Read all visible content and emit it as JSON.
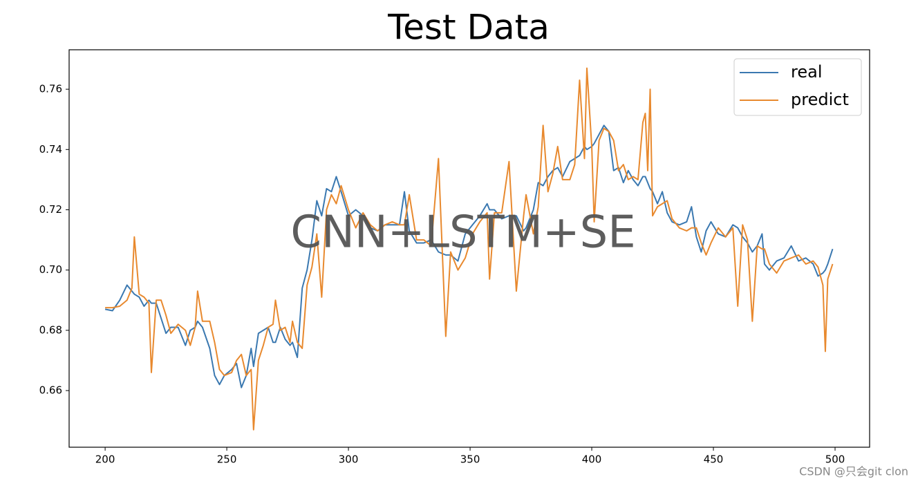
{
  "chart_data": {
    "type": "line",
    "title": "Test Data",
    "watermark": "CNN+LSTM+SE",
    "credit": "CSDN @只会git clon",
    "x": [
      200,
      203,
      206,
      209,
      211,
      212,
      214,
      216,
      218,
      219,
      221,
      223,
      225,
      227,
      230,
      233,
      235,
      237,
      238,
      240,
      243,
      245,
      247,
      249,
      252,
      254,
      256,
      258,
      260,
      261,
      263,
      265,
      267,
      269,
      270,
      272,
      274,
      276,
      277,
      279,
      281,
      283,
      285,
      287,
      289,
      291,
      293,
      295,
      297,
      300,
      303,
      306,
      309,
      312,
      315,
      318,
      321,
      323,
      325,
      328,
      331,
      334,
      337,
      340,
      342,
      345,
      348,
      351,
      354,
      357,
      358,
      360,
      363,
      366,
      369,
      372,
      373,
      376,
      378,
      380,
      382,
      384,
      386,
      388,
      391,
      393,
      395,
      397,
      398,
      400,
      401,
      403,
      405,
      407,
      409,
      411,
      413,
      415,
      417,
      419,
      421,
      422,
      423,
      424,
      425,
      427,
      429,
      431,
      433,
      436,
      439,
      441,
      443,
      445,
      447,
      449,
      452,
      455,
      458,
      460,
      462,
      464,
      466,
      468,
      470,
      471,
      473,
      476,
      479,
      482,
      485,
      488,
      491,
      493,
      495,
      496,
      497,
      499
    ],
    "series": [
      {
        "name": "real",
        "color": "#3a78b0",
        "values": [
          0.687,
          0.6865,
          0.69,
          0.695,
          0.693,
          0.692,
          0.691,
          0.688,
          0.69,
          0.689,
          0.689,
          0.684,
          0.679,
          0.681,
          0.681,
          0.675,
          0.68,
          0.681,
          0.683,
          0.681,
          0.674,
          0.665,
          0.662,
          0.665,
          0.667,
          0.669,
          0.661,
          0.665,
          0.674,
          0.668,
          0.679,
          0.68,
          0.681,
          0.676,
          0.676,
          0.681,
          0.677,
          0.675,
          0.676,
          0.671,
          0.694,
          0.7,
          0.71,
          0.723,
          0.718,
          0.727,
          0.726,
          0.731,
          0.726,
          0.718,
          0.72,
          0.718,
          0.714,
          0.713,
          0.715,
          0.715,
          0.715,
          0.726,
          0.713,
          0.709,
          0.709,
          0.71,
          0.706,
          0.705,
          0.705,
          0.703,
          0.712,
          0.715,
          0.718,
          0.722,
          0.72,
          0.72,
          0.717,
          0.718,
          0.718,
          0.713,
          0.714,
          0.72,
          0.729,
          0.728,
          0.731,
          0.733,
          0.734,
          0.731,
          0.736,
          0.737,
          0.738,
          0.741,
          0.74,
          0.741,
          0.742,
          0.745,
          0.748,
          0.746,
          0.733,
          0.734,
          0.729,
          0.733,
          0.73,
          0.728,
          0.731,
          0.731,
          0.729,
          0.727,
          0.726,
          0.722,
          0.726,
          0.719,
          0.716,
          0.715,
          0.716,
          0.721,
          0.711,
          0.706,
          0.713,
          0.716,
          0.712,
          0.711,
          0.715,
          0.714,
          0.711,
          0.709,
          0.706,
          0.708,
          0.712,
          0.702,
          0.7,
          0.703,
          0.704,
          0.708,
          0.703,
          0.704,
          0.702,
          0.698,
          0.699,
          0.7,
          0.702,
          0.707
        ]
      },
      {
        "name": "predict",
        "color": "#e8892e",
        "values": [
          0.6875,
          0.6875,
          0.688,
          0.69,
          0.694,
          0.711,
          0.692,
          0.691,
          0.689,
          0.666,
          0.69,
          0.69,
          0.685,
          0.679,
          0.682,
          0.68,
          0.675,
          0.681,
          0.693,
          0.683,
          0.683,
          0.676,
          0.667,
          0.665,
          0.666,
          0.67,
          0.672,
          0.665,
          0.667,
          0.647,
          0.67,
          0.675,
          0.681,
          0.682,
          0.69,
          0.68,
          0.681,
          0.676,
          0.683,
          0.676,
          0.674,
          0.695,
          0.701,
          0.712,
          0.691,
          0.72,
          0.725,
          0.722,
          0.728,
          0.72,
          0.714,
          0.719,
          0.715,
          0.713,
          0.715,
          0.716,
          0.715,
          0.715,
          0.725,
          0.71,
          0.71,
          0.708,
          0.737,
          0.678,
          0.706,
          0.7,
          0.704,
          0.712,
          0.716,
          0.719,
          0.697,
          0.719,
          0.719,
          0.736,
          0.693,
          0.718,
          0.725,
          0.712,
          0.721,
          0.748,
          0.726,
          0.732,
          0.741,
          0.73,
          0.73,
          0.735,
          0.763,
          0.737,
          0.767,
          0.741,
          0.716,
          0.743,
          0.747,
          0.746,
          0.743,
          0.733,
          0.735,
          0.73,
          0.731,
          0.73,
          0.749,
          0.752,
          0.733,
          0.76,
          0.718,
          0.721,
          0.722,
          0.723,
          0.717,
          0.714,
          0.713,
          0.714,
          0.714,
          0.709,
          0.705,
          0.709,
          0.714,
          0.711,
          0.714,
          0.688,
          0.715,
          0.71,
          0.683,
          0.708,
          0.707,
          0.707,
          0.702,
          0.699,
          0.703,
          0.704,
          0.705,
          0.702,
          0.703,
          0.701,
          0.695,
          0.673,
          0.697,
          0.702
        ]
      }
    ],
    "xlim": [
      185.2,
      514.2
    ],
    "ylim": [
      0.6412,
      0.7731
    ],
    "xticks": [
      200,
      250,
      300,
      350,
      400,
      450,
      500
    ],
    "yticks": [
      0.66,
      0.68,
      {
        "value": 0.7,
        "label": "0.70"
      },
      0.72,
      0.74,
      0.76
    ],
    "legend": "upper right"
  }
}
